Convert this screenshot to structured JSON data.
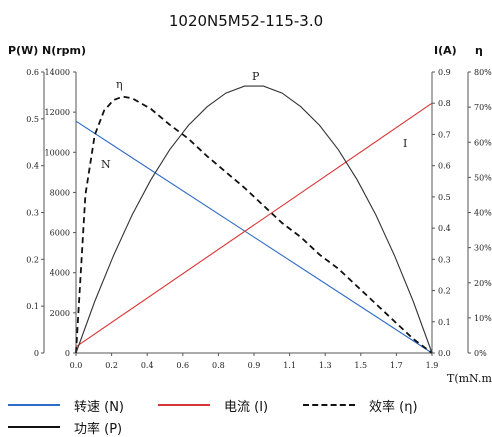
{
  "chart_data": {
    "type": "line",
    "title": "1020N5M52-115-3.0",
    "x_axis": {
      "label": "T(mN.m)",
      "min": 0,
      "max": 1.9,
      "ticks": [
        "0.0",
        "0.2",
        "0.4",
        "0.6",
        "0.8",
        "0.9",
        "1.1",
        "1.3",
        "1.5",
        "1.7",
        "1.9"
      ]
    },
    "axes": {
      "power": {
        "label": "P(W)",
        "min": 0,
        "max": 0.6,
        "ticks": [
          "0",
          "0.1",
          "0.2",
          "0.3",
          "0.4",
          "0.5",
          "0.6"
        ]
      },
      "speed": {
        "label": "N(rpm)",
        "min": 0,
        "max": 14000,
        "ticks": [
          "0",
          "2000",
          "4000",
          "6000",
          "8000",
          "10000",
          "12000",
          "14000"
        ]
      },
      "current": {
        "label": "I(A)",
        "min": 0,
        "max": 0.9,
        "ticks": [
          "0.0",
          "0.1",
          "0.2",
          "0.3",
          "0.4",
          "0.5",
          "0.6",
          "0.7",
          "0.8",
          "0.9"
        ]
      },
      "efficiency": {
        "label": "η",
        "min": 0,
        "max": 80,
        "ticks": [
          "0%",
          "10%",
          "20%",
          "30%",
          "40%",
          "50%",
          "60%",
          "70%",
          "80%"
        ]
      }
    },
    "series": [
      {
        "name": "转速 (N)",
        "axis": "speed",
        "color": "#2e6bc4",
        "dash": "none",
        "curve_label": "N",
        "x": [
          0,
          1.9
        ],
        "y": [
          11550,
          0
        ]
      },
      {
        "name": "电流 (I)",
        "axis": "current",
        "color": "#d93636",
        "dash": "none",
        "curve_label": "I",
        "x": [
          0,
          1.9
        ],
        "y": [
          0.02,
          0.8
        ]
      },
      {
        "name": "效率 (η)",
        "axis": "efficiency",
        "color": "#111111",
        "dash": "6,4",
        "curve_label": "η",
        "x": [
          0,
          0.05,
          0.1,
          0.15,
          0.2,
          0.25,
          0.3,
          0.4,
          0.5,
          0.6,
          0.7,
          0.8,
          0.9,
          1.0,
          1.1,
          1.2,
          1.3,
          1.4,
          1.5,
          1.6,
          1.7,
          1.8,
          1.85,
          1.9
        ],
        "y": [
          0,
          45,
          62,
          69,
          72,
          73,
          72.5,
          69.5,
          65,
          61,
          56,
          51.5,
          47,
          42,
          37,
          33,
          28,
          24,
          19,
          14,
          9,
          4,
          2,
          0
        ]
      },
      {
        "name": "功率 (P)",
        "axis": "power",
        "color": "#333333",
        "dash": "none",
        "curve_label": "P",
        "x": [
          0,
          0.1,
          0.2,
          0.3,
          0.4,
          0.5,
          0.6,
          0.7,
          0.8,
          0.9,
          1.0,
          1.1,
          1.2,
          1.3,
          1.4,
          1.5,
          1.6,
          1.7,
          1.8,
          1.9
        ],
        "y": [
          0,
          0.11,
          0.208,
          0.295,
          0.37,
          0.434,
          0.486,
          0.526,
          0.555,
          0.57,
          0.57,
          0.555,
          0.526,
          0.486,
          0.434,
          0.37,
          0.295,
          0.208,
          0.11,
          0
        ]
      }
    ]
  },
  "legend": {
    "speed": "转速 (N)",
    "current": "电流 (I)",
    "efficiency": "效率 (η)",
    "power": "功率 (P)"
  }
}
